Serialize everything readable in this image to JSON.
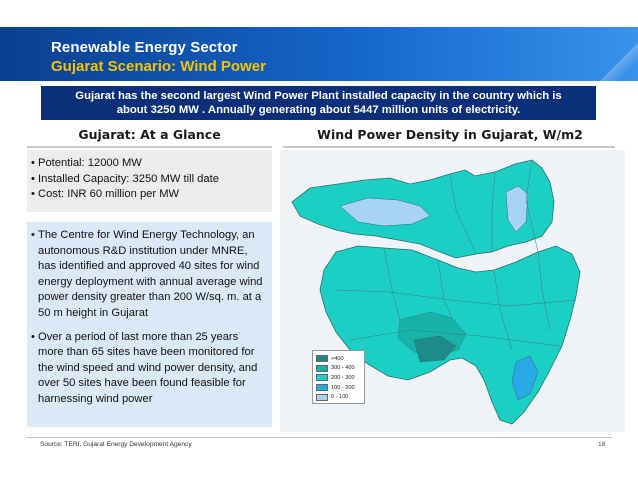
{
  "header": {
    "title": "Renewable Energy Sector",
    "subtitle": "Gujarat Scenario: Wind Power"
  },
  "banner": {
    "line1": "Gujarat has the second largest Wind Power Plant installed capacity in the country which is",
    "line2": "about 3250 MW . Annually generating about 5447 million units of electricity."
  },
  "left_column": {
    "title": "Gujarat: At a Glance",
    "glance_items": [
      "Potential: 12000 MW",
      "Installed Capacity: 3250 MW till date",
      "Cost: INR 60 million per MW"
    ],
    "detail_items": [
      "The Centre for Wind Energy Technology, an autonomous R&D institution under MNRE, has identified and approved 40 sites for wind energy deployment with annual average wind power density greater than 200 W/sq. m. at a 50 m height in Gujarat",
      "Over a period of last more than 25 years more than 65 sites have been monitored for the wind speed and wind power density, and over 50 sites have been found feasible for harnessing wind power"
    ]
  },
  "right_column": {
    "title": "Wind Power Density in Gujarat, W/m2",
    "legend": [
      {
        "label": ">400",
        "color": "#1f8a8a"
      },
      {
        "label": "300 - 400",
        "color": "#17b3a8"
      },
      {
        "label": "200 - 300",
        "color": "#1ccfc4"
      },
      {
        "label": "100 - 200",
        "color": "#2aa9e8"
      },
      {
        "label": "0 - 100",
        "color": "#a9d3f3"
      }
    ]
  },
  "footer": {
    "source": "Source: TERI, Gujarat Energy Development Agency",
    "page": "18"
  }
}
